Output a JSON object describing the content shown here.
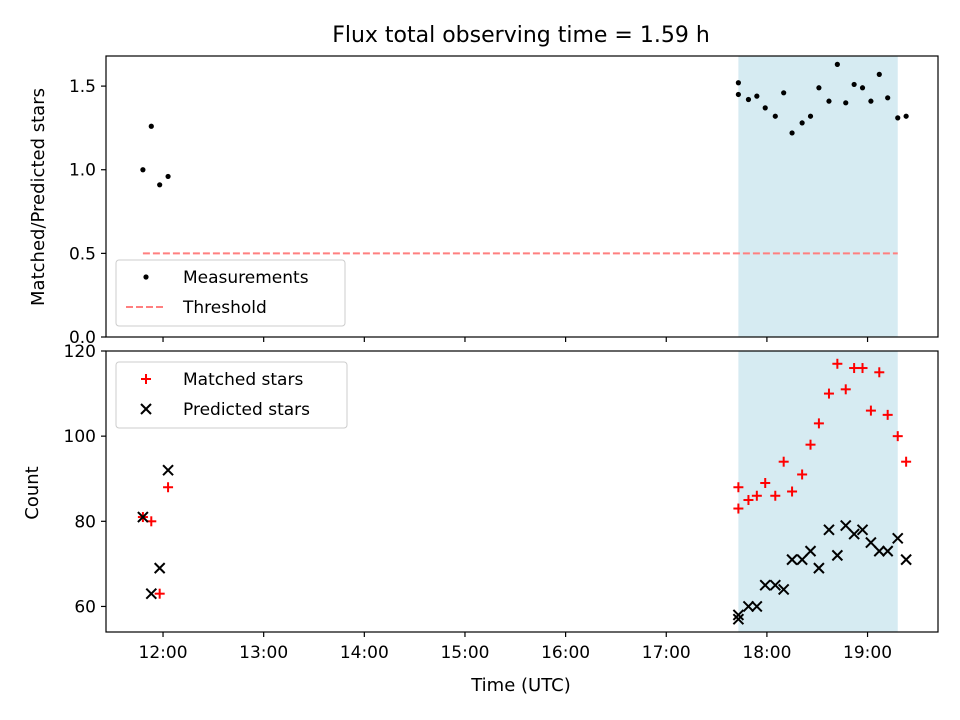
{
  "chart_data": [
    {
      "type": "scatter",
      "title": "Flux total observing time = 1.59 h",
      "xlabel": "",
      "ylabel": "Matched/Predicted stars",
      "xlim": [
        "11:26",
        "19:42"
      ],
      "ylim": [
        0,
        1.68
      ],
      "yticks": [
        "0.0",
        "0.5",
        "1.0",
        "1.5"
      ],
      "shaded_span": {
        "start": "17:43",
        "end": "19:18",
        "color": "#add8e6"
      },
      "legend_position": "lower left",
      "series": [
        {
          "name": "Measurements",
          "style": "dot",
          "color": "#000000",
          "points": [
            [
              "11:48",
              1.0
            ],
            [
              "11:53",
              1.26
            ],
            [
              "11:58",
              0.91
            ],
            [
              "12:03",
              0.96
            ],
            [
              "17:43",
              1.52
            ],
            [
              "17:43",
              1.45
            ],
            [
              "17:49",
              1.42
            ],
            [
              "17:54",
              1.44
            ],
            [
              "17:59",
              1.37
            ],
            [
              "18:05",
              1.32
            ],
            [
              "18:10",
              1.46
            ],
            [
              "18:15",
              1.22
            ],
            [
              "18:21",
              1.28
            ],
            [
              "18:26",
              1.32
            ],
            [
              "18:31",
              1.49
            ],
            [
              "18:37",
              1.41
            ],
            [
              "18:42",
              1.63
            ],
            [
              "18:47",
              1.4
            ],
            [
              "18:52",
              1.51
            ],
            [
              "18:57",
              1.49
            ],
            [
              "19:02",
              1.41
            ],
            [
              "19:07",
              1.57
            ],
            [
              "19:12",
              1.43
            ],
            [
              "19:18",
              1.31
            ],
            [
              "19:23",
              1.32
            ]
          ]
        },
        {
          "name": "Threshold",
          "style": "dashed-line",
          "color": "#ff7f7f",
          "points": [
            [
              "11:48",
              0.5
            ],
            [
              "19:18",
              0.5
            ]
          ]
        }
      ]
    },
    {
      "type": "scatter",
      "title": "",
      "xlabel": "Time (UTC)",
      "ylabel": "Count",
      "xlim": [
        "11:26",
        "19:42"
      ],
      "ylim": [
        54,
        120
      ],
      "yticks": [
        "60",
        "80",
        "100",
        "120"
      ],
      "xticks": [
        "12:00",
        "13:00",
        "14:00",
        "15:00",
        "16:00",
        "17:00",
        "18:00",
        "19:00"
      ],
      "shaded_span": {
        "start": "17:43",
        "end": "19:18",
        "color": "#add8e6"
      },
      "legend_position": "upper left",
      "series": [
        {
          "name": "Matched stars",
          "style": "plus",
          "color": "#ff0000",
          "points": [
            [
              "11:48",
              81
            ],
            [
              "11:53",
              80
            ],
            [
              "11:58",
              63
            ],
            [
              "12:03",
              88
            ],
            [
              "17:43",
              88
            ],
            [
              "17:43",
              83
            ],
            [
              "17:49",
              85
            ],
            [
              "17:54",
              86
            ],
            [
              "17:59",
              89
            ],
            [
              "18:05",
              86
            ],
            [
              "18:10",
              94
            ],
            [
              "18:15",
              87
            ],
            [
              "18:21",
              91
            ],
            [
              "18:26",
              98
            ],
            [
              "18:31",
              103
            ],
            [
              "18:37",
              110
            ],
            [
              "18:42",
              117
            ],
            [
              "18:47",
              111
            ],
            [
              "18:52",
              116
            ],
            [
              "18:57",
              116
            ],
            [
              "19:02",
              106
            ],
            [
              "19:07",
              115
            ],
            [
              "19:12",
              105
            ],
            [
              "19:18",
              100
            ],
            [
              "19:23",
              94
            ]
          ]
        },
        {
          "name": "Predicted stars",
          "style": "x",
          "color": "#000000",
          "points": [
            [
              "11:48",
              81
            ],
            [
              "11:53",
              63
            ],
            [
              "11:58",
              69
            ],
            [
              "12:03",
              92
            ],
            [
              "17:43",
              58
            ],
            [
              "17:43",
              57
            ],
            [
              "17:49",
              60
            ],
            [
              "17:54",
              60
            ],
            [
              "17:59",
              65
            ],
            [
              "18:05",
              65
            ],
            [
              "18:10",
              64
            ],
            [
              "18:15",
              71
            ],
            [
              "18:21",
              71
            ],
            [
              "18:26",
              73
            ],
            [
              "18:31",
              69
            ],
            [
              "18:37",
              78
            ],
            [
              "18:42",
              72
            ],
            [
              "18:47",
              79
            ],
            [
              "18:52",
              77
            ],
            [
              "18:57",
              78
            ],
            [
              "19:02",
              75
            ],
            [
              "19:07",
              73
            ],
            [
              "19:12",
              73
            ],
            [
              "19:18",
              76
            ],
            [
              "19:23",
              71
            ]
          ]
        }
      ]
    }
  ]
}
